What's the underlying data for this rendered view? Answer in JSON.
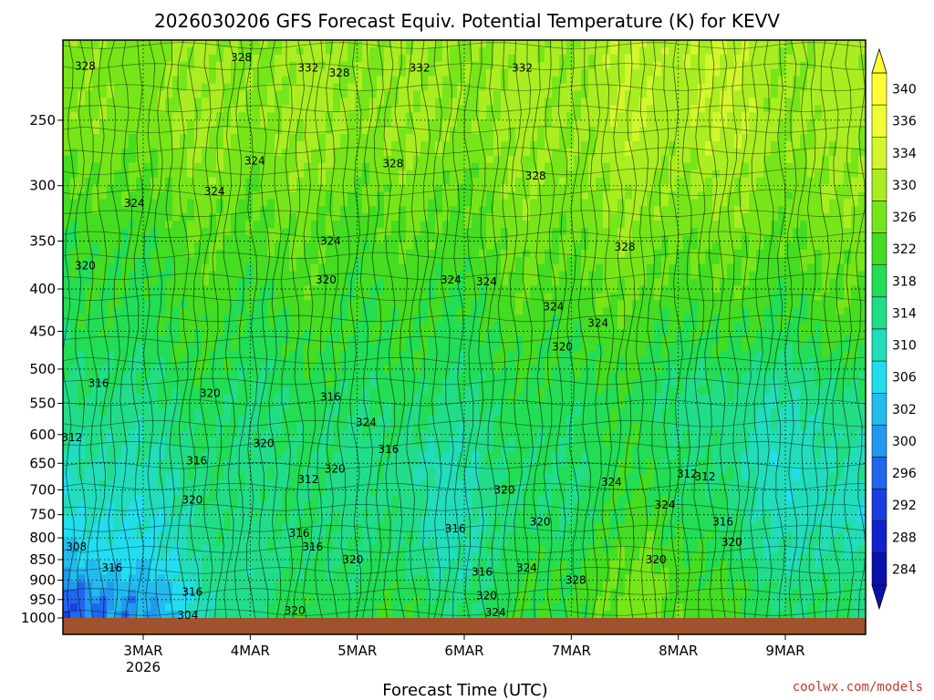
{
  "chart_data": {
    "type": "heatmap",
    "title": "2026030206 GFS Forecast Equiv. Potential Temperature (K) for KEVV",
    "xlabel": "Forecast Time (UTC)",
    "ylabel": "",
    "credit": "coolwx.com/models",
    "x_ticks": [
      {
        "label": "3MAR",
        "sub": "2026",
        "hour": 18
      },
      {
        "label": "4MAR",
        "sub": "",
        "hour": 42
      },
      {
        "label": "5MAR",
        "sub": "",
        "hour": 66
      },
      {
        "label": "6MAR",
        "sub": "",
        "hour": 90
      },
      {
        "label": "7MAR",
        "sub": "",
        "hour": 114
      },
      {
        "label": "8MAR",
        "sub": "",
        "hour": 138
      },
      {
        "label": "9MAR",
        "sub": "",
        "hour": 162
      }
    ],
    "xlim_hours": [
      0,
      180
    ],
    "y_ticks": [
      "250",
      "300",
      "350",
      "400",
      "450",
      "500",
      "550",
      "600",
      "650",
      "700",
      "750",
      "800",
      "850",
      "900",
      "950",
      "1000"
    ],
    "ylim_hpa": [
      1000,
      200
    ],
    "y_scale": "log",
    "grid": "dotted",
    "colorbar": {
      "labels": [
        "340",
        "336",
        "334",
        "330",
        "326",
        "322",
        "318",
        "314",
        "310",
        "306",
        "302",
        "300",
        "296",
        "292",
        "288",
        "284"
      ],
      "colors": [
        "#ffff33",
        "#eeff33",
        "#d2f72c",
        "#aaee22",
        "#77e619",
        "#44dd22",
        "#22dd55",
        "#22dd88",
        "#22ddbb",
        "#22ddee",
        "#22bbee",
        "#2299ee",
        "#2266ee",
        "#1a3ee0",
        "#1122cc",
        "#0a11aa"
      ],
      "extends": "both"
    },
    "profile_levels": [
      250,
      350,
      450,
      550,
      650,
      750,
      850,
      950
    ],
    "time_hours": [
      0,
      12,
      24,
      36,
      48,
      60,
      72,
      84,
      96,
      108,
      120,
      132,
      144,
      156,
      168,
      180
    ],
    "theta_e": [
      [
        328,
        328,
        330,
        330,
        330,
        331,
        330,
        330,
        330,
        331,
        332,
        333,
        334,
        332,
        331,
        331
      ],
      [
        321,
        323,
        324,
        325,
        326,
        324,
        325,
        324,
        326,
        327,
        328,
        328,
        327,
        326,
        327,
        327
      ],
      [
        319,
        320,
        322,
        322,
        321,
        323,
        322,
        321,
        322,
        323,
        324,
        323,
        322,
        321,
        322,
        323
      ],
      [
        316,
        316,
        318,
        319,
        318,
        319,
        319,
        317,
        319,
        320,
        321,
        319,
        316,
        314,
        315,
        316
      ],
      [
        312,
        313,
        315,
        318,
        317,
        317,
        317,
        312,
        317,
        318,
        320,
        321,
        318,
        312,
        312,
        313
      ],
      [
        309,
        310,
        312,
        317,
        318,
        317,
        318,
        311,
        316,
        318,
        320,
        323,
        320,
        314,
        312,
        310
      ],
      [
        304,
        307,
        310,
        316,
        317,
        318,
        320,
        312,
        318,
        321,
        323,
        327,
        322,
        316,
        315,
        314
      ],
      [
        296,
        301,
        305,
        316,
        319,
        320,
        322,
        318,
        320,
        322,
        325,
        328,
        324,
        320,
        318,
        317
      ]
    ],
    "contour_labels": [
      {
        "text": "328",
        "hour": 5,
        "hpa": 215
      },
      {
        "text": "328",
        "hour": 40,
        "hpa": 210
      },
      {
        "text": "332",
        "hour": 55,
        "hpa": 216
      },
      {
        "text": "328",
        "hour": 62,
        "hpa": 219
      },
      {
        "text": "332",
        "hour": 80,
        "hpa": 216
      },
      {
        "text": "332",
        "hour": 103,
        "hpa": 216
      },
      {
        "text": "324",
        "hour": 43,
        "hpa": 280
      },
      {
        "text": "328",
        "hour": 74,
        "hpa": 282
      },
      {
        "text": "328",
        "hour": 106,
        "hpa": 292
      },
      {
        "text": "324",
        "hour": 16,
        "hpa": 315
      },
      {
        "text": "324",
        "hour": 34,
        "hpa": 305
      },
      {
        "text": "324",
        "hour": 60,
        "hpa": 350
      },
      {
        "text": "328",
        "hour": 126,
        "hpa": 356
      },
      {
        "text": "320",
        "hour": 5,
        "hpa": 375
      },
      {
        "text": "320",
        "hour": 59,
        "hpa": 390
      },
      {
        "text": "324",
        "hour": 87,
        "hpa": 390
      },
      {
        "text": "324",
        "hour": 95,
        "hpa": 392
      },
      {
        "text": "324",
        "hour": 110,
        "hpa": 420
      },
      {
        "text": "324",
        "hour": 120,
        "hpa": 440
      },
      {
        "text": "320",
        "hour": 112,
        "hpa": 470
      },
      {
        "text": "316",
        "hour": 8,
        "hpa": 520
      },
      {
        "text": "320",
        "hour": 33,
        "hpa": 535
      },
      {
        "text": "316",
        "hour": 60,
        "hpa": 540
      },
      {
        "text": "324",
        "hour": 68,
        "hpa": 580
      },
      {
        "text": "312",
        "hour": 2,
        "hpa": 605
      },
      {
        "text": "320",
        "hour": 45,
        "hpa": 615
      },
      {
        "text": "316",
        "hour": 30,
        "hpa": 645
      },
      {
        "text": "316",
        "hour": 73,
        "hpa": 625
      },
      {
        "text": "320",
        "hour": 61,
        "hpa": 660
      },
      {
        "text": "312",
        "hour": 55,
        "hpa": 680
      },
      {
        "text": "320",
        "hour": 99,
        "hpa": 700
      },
      {
        "text": "324",
        "hour": 123,
        "hpa": 685
      },
      {
        "text": "312",
        "hour": 140,
        "hpa": 670
      },
      {
        "text": "312",
        "hour": 144,
        "hpa": 675
      },
      {
        "text": "320",
        "hour": 29,
        "hpa": 720
      },
      {
        "text": "324",
        "hour": 135,
        "hpa": 730
      },
      {
        "text": "320",
        "hour": 107,
        "hpa": 765
      },
      {
        "text": "316",
        "hour": 88,
        "hpa": 780
      },
      {
        "text": "316",
        "hour": 148,
        "hpa": 765
      },
      {
        "text": "316",
        "hour": 53,
        "hpa": 790
      },
      {
        "text": "316",
        "hour": 56,
        "hpa": 820
      },
      {
        "text": "308",
        "hour": 3,
        "hpa": 820
      },
      {
        "text": "320",
        "hour": 150,
        "hpa": 810
      },
      {
        "text": "320",
        "hour": 65,
        "hpa": 850
      },
      {
        "text": "320",
        "hour": 133,
        "hpa": 850
      },
      {
        "text": "316",
        "hour": 11,
        "hpa": 870
      },
      {
        "text": "324",
        "hour": 104,
        "hpa": 870
      },
      {
        "text": "316",
        "hour": 94,
        "hpa": 880
      },
      {
        "text": "328",
        "hour": 115,
        "hpa": 900
      },
      {
        "text": "316",
        "hour": 29,
        "hpa": 930
      },
      {
        "text": "320",
        "hour": 95,
        "hpa": 940
      },
      {
        "text": "320",
        "hour": 52,
        "hpa": 980
      },
      {
        "text": "324",
        "hour": 97,
        "hpa": 985
      },
      {
        "text": "304",
        "hour": 28,
        "hpa": 993
      }
    ]
  }
}
